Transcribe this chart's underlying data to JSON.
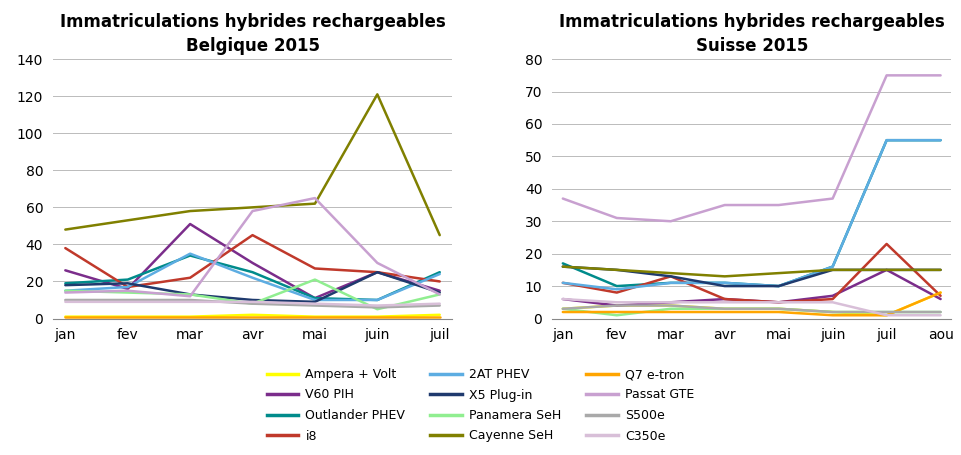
{
  "belgique": {
    "title": "Immatriculations hybrides rechargeables\nBelgique 2015",
    "months": [
      "jan",
      "fev",
      "mar",
      "avr",
      "mai",
      "juin",
      "juil"
    ],
    "ylim": [
      0,
      140
    ],
    "yticks": [
      0,
      20,
      40,
      60,
      80,
      100,
      120,
      140
    ],
    "series": {
      "Ampera + Volt": {
        "color": "#FFFF00",
        "data": [
          1,
          1,
          1,
          2,
          1,
          1,
          2
        ]
      },
      "V60 PIH": {
        "color": "#7B2D8B",
        "data": [
          26,
          16,
          51,
          30,
          11,
          25,
          15
        ]
      },
      "Outlander PHEV": {
        "color": "#008B8B",
        "data": [
          19,
          21,
          34,
          25,
          11,
          10,
          25
        ]
      },
      "i8": {
        "color": "#C0392B",
        "data": [
          38,
          17,
          22,
          45,
          27,
          25,
          20
        ]
      },
      "2AT PHEV": {
        "color": "#5DADE2",
        "data": [
          15,
          17,
          35,
          22,
          10,
          10,
          24
        ]
      },
      "X5 Plug-in": {
        "color": "#1F3A6E",
        "data": [
          18,
          19,
          13,
          10,
          9,
          25,
          14
        ]
      },
      "Panamera SeH": {
        "color": "#90EE90",
        "data": [
          15,
          14,
          13,
          8,
          21,
          5,
          13
        ]
      },
      "Cayenne SeH": {
        "color": "#808000",
        "data": [
          48,
          53,
          58,
          60,
          62,
          121,
          45
        ]
      },
      "Q7 e-tron": {
        "color": "#FFA500",
        "data": [
          1,
          1,
          1,
          1,
          1,
          1,
          1
        ]
      },
      "Passat GTE": {
        "color": "#C8A0D0",
        "data": [
          14,
          15,
          12,
          58,
          65,
          30,
          13
        ]
      },
      "S500e": {
        "color": "#A9A9A9",
        "data": [
          10,
          10,
          10,
          8,
          7,
          6,
          7
        ]
      },
      "C350e": {
        "color": "#D8BFD8",
        "data": [
          9,
          9,
          9,
          9,
          8,
          7,
          8
        ]
      }
    }
  },
  "suisse": {
    "title": "Immatriculations hybrides rechargeables\nSuisse 2015",
    "months": [
      "jan",
      "fev",
      "mar",
      "avr",
      "mai",
      "juin",
      "juil",
      "aou"
    ],
    "ylim": [
      0,
      80
    ],
    "yticks": [
      0,
      10,
      20,
      30,
      40,
      50,
      60,
      70,
      80
    ],
    "series": {
      "Ampera + Volt": {
        "color": "#FFFF00",
        "data": [
          3,
          4,
          4,
          3,
          3,
          2,
          1,
          8
        ]
      },
      "V60 PIH": {
        "color": "#7B2D8B",
        "data": [
          6,
          4,
          5,
          6,
          5,
          7,
          15,
          6
        ]
      },
      "Outlander PHEV": {
        "color": "#008B8B",
        "data": [
          17,
          10,
          11,
          11,
          10,
          16,
          55,
          55
        ]
      },
      "i8": {
        "color": "#C0392B",
        "data": [
          11,
          8,
          13,
          6,
          5,
          6,
          23,
          7
        ]
      },
      "2AT PHEV": {
        "color": "#5DADE2",
        "data": [
          11,
          9,
          11,
          11,
          10,
          16,
          55,
          55
        ]
      },
      "X5 Plug-in": {
        "color": "#1F3A6E",
        "data": [
          16,
          15,
          13,
          10,
          10,
          15,
          15,
          15
        ]
      },
      "Panamera SeH": {
        "color": "#90EE90",
        "data": [
          3,
          1,
          3,
          3,
          3,
          2,
          2,
          2
        ]
      },
      "Cayenne SeH": {
        "color": "#808000",
        "data": [
          16,
          15,
          14,
          13,
          14,
          15,
          15,
          15
        ]
      },
      "Q7 e-tron": {
        "color": "#FFA500",
        "data": [
          2,
          2,
          2,
          2,
          2,
          1,
          1,
          8
        ]
      },
      "Passat GTE": {
        "color": "#C8A0D0",
        "data": [
          37,
          31,
          30,
          35,
          35,
          37,
          75,
          75
        ]
      },
      "S500e": {
        "color": "#A9A9A9",
        "data": [
          3,
          4,
          4,
          3,
          3,
          2,
          2,
          2
        ]
      },
      "C350e": {
        "color": "#D8BFD8",
        "data": [
          6,
          5,
          5,
          5,
          5,
          5,
          1,
          1
        ]
      }
    }
  },
  "legend_order": [
    "Ampera + Volt",
    "V60 PIH",
    "Outlander PHEV",
    "i8",
    "2AT PHEV",
    "X5 Plug-in",
    "Panamera SeH",
    "Cayenne SeH",
    "Q7 e-tron",
    "Passat GTE",
    "S500e",
    "C350e"
  ],
  "background_color": "#FFFFFF",
  "grid_color": "#BBBBBB",
  "title_fontsize": 12,
  "tick_fontsize": 10,
  "legend_fontsize": 9,
  "linewidth": 1.8
}
